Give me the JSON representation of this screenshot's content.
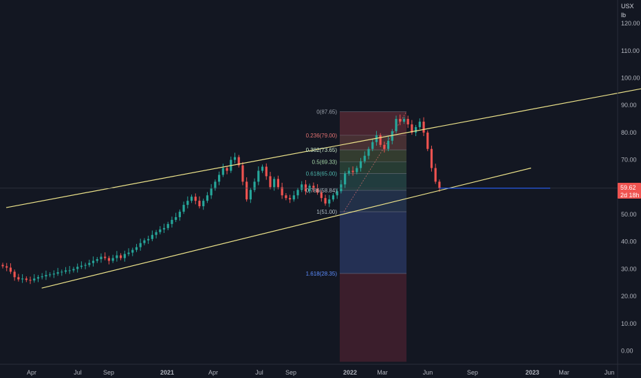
{
  "header": {
    "currency": "USX",
    "unit": "lb"
  },
  "colors": {
    "background": "#131722",
    "up": "#26a69a",
    "down": "#ef5350",
    "channel": "#f0e68c",
    "price_line": "#2962ff",
    "badge": "#ef5350",
    "axis_text": "#b2b5be"
  },
  "price_badge": {
    "price": "59.62",
    "countdown": "2d 18h"
  },
  "chart_data": {
    "type": "candlestick",
    "y_axis": {
      "ticks": [
        "0.00",
        "10.00",
        "20.00",
        "30.00",
        "40.00",
        "50.00",
        "60.00",
        "70.00",
        "80.00",
        "90.00",
        "100.00",
        "110.00",
        "120.00"
      ],
      "ylim": [
        -3,
        121
      ]
    },
    "x_axis": {
      "labels": [
        {
          "text": "Apr",
          "bold": false
        },
        {
          "text": "Jul",
          "bold": false
        },
        {
          "text": "Sep",
          "bold": false
        },
        {
          "text": "2021",
          "bold": true
        },
        {
          "text": "Apr",
          "bold": false
        },
        {
          "text": "Jul",
          "bold": false
        },
        {
          "text": "Sep",
          "bold": false
        },
        {
          "text": "2022",
          "bold": true
        },
        {
          "text": "Mar",
          "bold": false
        },
        {
          "text": "Jun",
          "bold": false
        },
        {
          "text": "Sep",
          "bold": false
        },
        {
          "text": "2023",
          "bold": true
        },
        {
          "text": "Mar",
          "bold": false
        },
        {
          "text": "Jun",
          "bold": false
        }
      ]
    },
    "last_price": 59.62,
    "closes": [
      31.0,
      30.5,
      29.0,
      27.0,
      26.2,
      26.5,
      26.0,
      25.8,
      26.5,
      27.0,
      27.3,
      27.8,
      28.0,
      28.3,
      28.8,
      29.0,
      29.5,
      29.5,
      30.0,
      30.8,
      31.2,
      31.5,
      32.2,
      33.0,
      33.6,
      34.5,
      34.0,
      33.0,
      34.0,
      35.0,
      34.0,
      35.5,
      36.0,
      37.0,
      38.0,
      39.5,
      40.5,
      41.0,
      42.5,
      43.5,
      44.5,
      45.0,
      46.5,
      48.0,
      49.0,
      51.0,
      53.5,
      55.0,
      56.5,
      55.0,
      53.0,
      55.0,
      57.0,
      59.5,
      62.0,
      64.5,
      67.0,
      66.0,
      70.0,
      71.0,
      68.0,
      62.0,
      55.5,
      59.0,
      62.0,
      66.0,
      67.5,
      64.0,
      60.0,
      63.0,
      60.0,
      57.0,
      56.0,
      55.5,
      57.0,
      59.0,
      61.0,
      58.5,
      60.5,
      59.5,
      58.0,
      56.0,
      54.0,
      55.5,
      57.0,
      58.5,
      61.0,
      65.0,
      66.0,
      65.5,
      67.0,
      69.5,
      71.5,
      74.0,
      76.5,
      79.0,
      75.5,
      74.0,
      77.0,
      80.5,
      85.0,
      84.0,
      85.0,
      83.0,
      80.0,
      82.0,
      84.0,
      80.0,
      74.0,
      67.0,
      62.0,
      59.62
    ],
    "channel": {
      "upper": [
        [
          0,
          52.5
        ],
        [
          200,
          106
        ]
      ],
      "lower": [
        [
          12,
          23
        ],
        [
          178,
          67
        ]
      ]
    },
    "fibonacci": {
      "levels": [
        {
          "ratio": "0",
          "value": 87.65,
          "label": "0(87.65)"
        },
        {
          "ratio": "0.236",
          "value": 79.0,
          "label": "0.236(79.00)"
        },
        {
          "ratio": "0.382",
          "value": 73.65,
          "label": "0.382(73.65)"
        },
        {
          "ratio": "0.5",
          "value": 69.33,
          "label": "0.5(69.33)"
        },
        {
          "ratio": "0.618",
          "value": 65.0,
          "label": "0.618(65.00)"
        },
        {
          "ratio": "0.786",
          "value": 58.84,
          "label": "0.786(58.84)"
        },
        {
          "ratio": "1",
          "value": 51.0,
          "label": "1(51.00)"
        },
        {
          "ratio": "1.618",
          "value": 28.35,
          "label": "1.618(28.35)"
        }
      ],
      "bottom": -4
    }
  }
}
